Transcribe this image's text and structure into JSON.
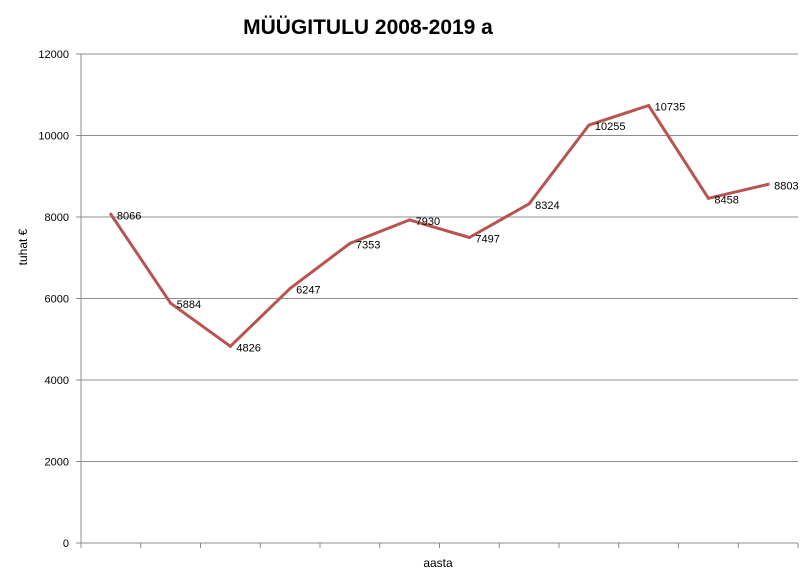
{
  "chart_data": {
    "type": "line",
    "title": "MÜÜGITULU 2008-2019 a",
    "xlabel": "aasta",
    "ylabel": "tuhat €",
    "ylim": [
      0,
      12000
    ],
    "y_ticks": [
      0,
      2000,
      4000,
      6000,
      8000,
      10000,
      12000
    ],
    "grid": true,
    "legend": "none",
    "series": [
      {
        "color": "#b85450",
        "values": [
          8066,
          5884,
          4826,
          6247,
          7353,
          7930,
          7497,
          8324,
          10255,
          10735,
          8458,
          8803
        ],
        "labels": [
          "8066",
          "5884",
          "4826",
          "6247",
          "7353",
          "7930",
          "7497",
          "8324",
          "10255",
          "10735",
          "8458",
          "8803"
        ]
      }
    ]
  }
}
